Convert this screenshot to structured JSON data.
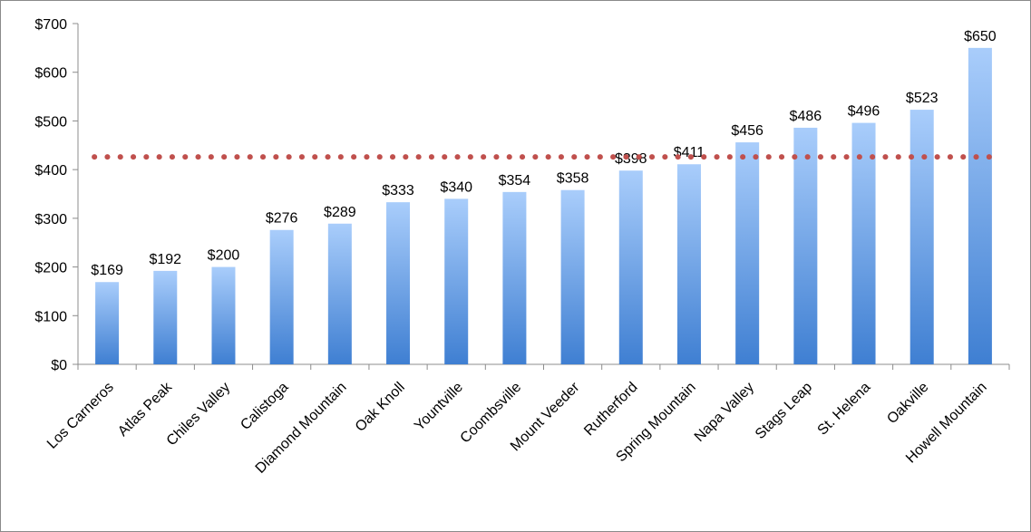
{
  "chart_data": {
    "type": "bar",
    "categories": [
      "Los Carneros",
      "Atlas Peak",
      "Chiles Valley",
      "Calistoga",
      "Diamond Mountain",
      "Oak Knoll",
      "Yountville",
      "Coombsville",
      "Mount Veeder",
      "Rutherford",
      "Spring Mountain",
      "Napa Valley",
      "Stags Leap",
      "St. Helena",
      "Oakville",
      "Howell Mountain"
    ],
    "values": [
      169,
      192,
      200,
      276,
      289,
      333,
      340,
      354,
      358,
      398,
      411,
      456,
      486,
      496,
      523,
      650
    ],
    "data_labels": [
      "$169",
      "$192",
      "$200",
      "$276",
      "$289",
      "$333",
      "$340",
      "$354",
      "$358",
      "$398",
      "$411",
      "$456",
      "$486",
      "$496",
      "$523",
      "$650"
    ],
    "reference_line": {
      "value": 426,
      "style": "dotted",
      "color": "#c0504d"
    },
    "ylim": [
      0,
      700
    ],
    "yticks": [
      0,
      100,
      200,
      300,
      400,
      500,
      600,
      700
    ],
    "ytick_labels": [
      "$0",
      "$100",
      "$200",
      "$300",
      "$400",
      "$500",
      "$600",
      "$700"
    ],
    "title": "",
    "xlabel": "",
    "ylabel": "",
    "grid": false,
    "bar_color_top": "#a9cdfb",
    "bar_color_bottom": "#3f7fd2"
  }
}
